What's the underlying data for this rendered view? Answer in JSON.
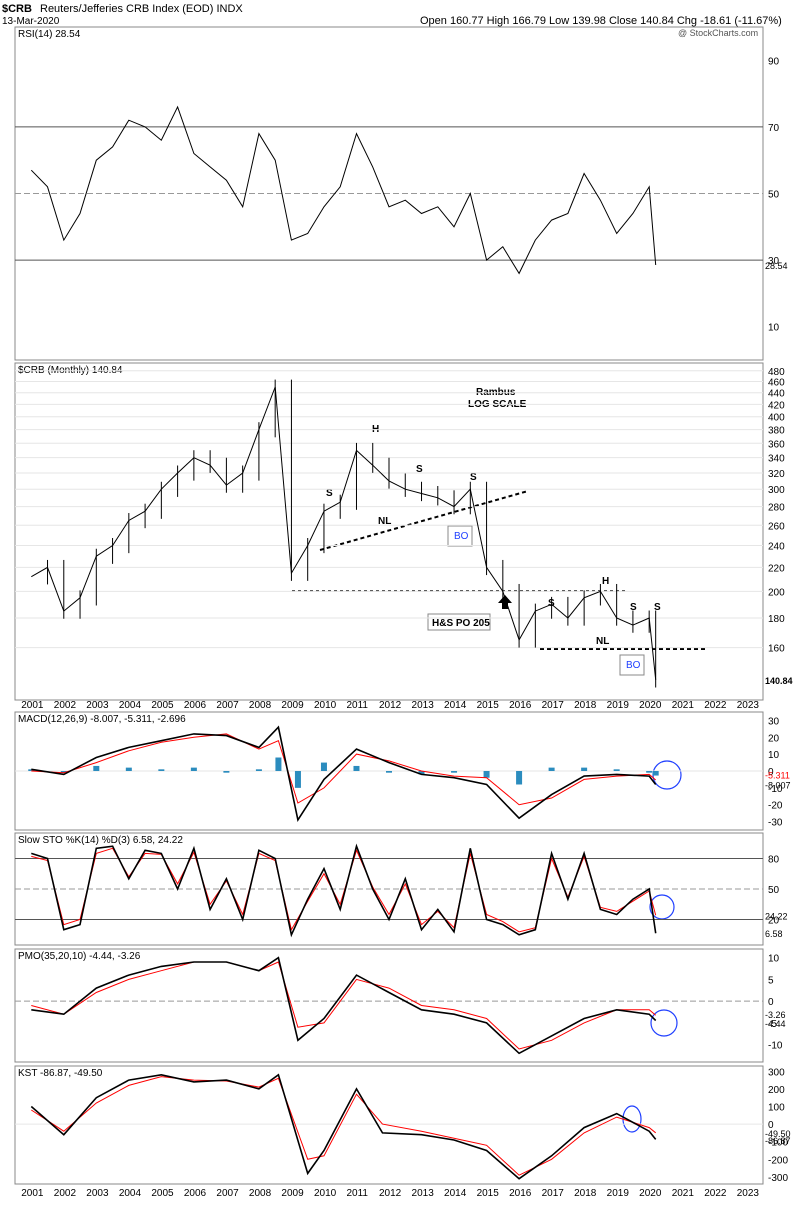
{
  "header": {
    "symbol": "$CRB",
    "name": "Reuters/Jefferies CRB Index (EOD) INDX",
    "date": "13-Mar-2020",
    "watermark": "@ StockCharts.com",
    "ohlc": "Open 160.77  High 166.79  Low 139.98  Close 140.84  Chg -18.61 (-11.67%)"
  },
  "colors": {
    "price": "#000000",
    "macd_signal": "#ff0000",
    "histogram": "#2b8cbe",
    "circle": "#1f3fff",
    "rsi_high_fill": "#4a7a4a",
    "rsi_low_fill": "#8b5a5a"
  },
  "chart_data": [
    {
      "type": "line",
      "panel": "RSI",
      "label": "RSI(14) 28.54",
      "last_value_tag": "28.54",
      "yticks": [
        "90",
        "70",
        "50",
        "30",
        "10"
      ],
      "ylim": [
        0,
        100
      ],
      "reference_lines": [
        70,
        50,
        30
      ],
      "x": [
        2001.0,
        2001.5,
        2002.0,
        2002.5,
        2003.0,
        2003.5,
        2004.0,
        2004.5,
        2005.0,
        2005.5,
        2006.0,
        2006.5,
        2007.0,
        2007.5,
        2008.0,
        2008.5,
        2009.0,
        2009.5,
        2010.0,
        2010.5,
        2011.0,
        2011.5,
        2012.0,
        2012.5,
        2013.0,
        2013.5,
        2014.0,
        2014.5,
        2015.0,
        2015.5,
        2016.0,
        2016.5,
        2017.0,
        2017.5,
        2018.0,
        2018.5,
        2019.0,
        2019.5,
        2020.0,
        2020.2
      ],
      "values": [
        57,
        52,
        36,
        44,
        60,
        64,
        72,
        70,
        66,
        76,
        62,
        58,
        54,
        46,
        68,
        60,
        36,
        38,
        46,
        52,
        68,
        58,
        46,
        48,
        44,
        46,
        40,
        50,
        30,
        34,
        26,
        36,
        42,
        44,
        56,
        48,
        38,
        44,
        52,
        28.54
      ]
    },
    {
      "type": "line",
      "panel": "Price",
      "label": "$CRB (Monthly) 140.84",
      "last_value_tag": "140.84",
      "scale": "log",
      "yticks": [
        "480",
        "460",
        "440",
        "420",
        "400",
        "380",
        "360",
        "340",
        "320",
        "300",
        "280",
        "260",
        "240",
        "220",
        "200",
        "180",
        "160"
      ],
      "annotations": [
        "Rambus",
        "LOG SCALE",
        "H",
        "S",
        "S",
        "S",
        "NL",
        "BO",
        "H&S PO 205",
        "H",
        "S",
        "S",
        "S",
        "NL",
        "BO"
      ],
      "xticks": [
        "2001",
        "2002",
        "2003",
        "2004",
        "2005",
        "2006",
        "2007",
        "2008",
        "2009",
        "2010",
        "2011",
        "2012",
        "2013",
        "2014",
        "2015",
        "2016",
        "2017",
        "2018",
        "2019",
        "2020",
        "2021",
        "2022",
        "2023"
      ],
      "x": [
        2001.0,
        2001.5,
        2002.0,
        2002.5,
        2003.0,
        2003.5,
        2004.0,
        2004.5,
        2005.0,
        2005.5,
        2006.0,
        2006.5,
        2007.0,
        2007.5,
        2008.0,
        2008.5,
        2009.0,
        2009.5,
        2010.0,
        2010.5,
        2011.0,
        2011.5,
        2012.0,
        2012.5,
        2013.0,
        2013.5,
        2014.0,
        2014.5,
        2015.0,
        2015.5,
        2016.0,
        2016.5,
        2017.0,
        2017.5,
        2018.0,
        2018.5,
        2019.0,
        2019.5,
        2020.0,
        2020.2
      ],
      "values": [
        212,
        220,
        185,
        195,
        230,
        240,
        265,
        275,
        300,
        320,
        340,
        330,
        305,
        320,
        380,
        450,
        215,
        240,
        275,
        285,
        350,
        330,
        310,
        300,
        295,
        290,
        280,
        300,
        220,
        200,
        165,
        185,
        190,
        180,
        195,
        200,
        180,
        175,
        180,
        140.84
      ]
    },
    {
      "type": "line",
      "panel": "MACD",
      "label": "MACD(12,26,9) -8.007, -5.311, -2.696",
      "last_value_tags": [
        "-5.311",
        "-8.007"
      ],
      "yticks": [
        "30",
        "20",
        "10",
        "0",
        "-10",
        "-20",
        "-30"
      ],
      "ylim": [
        -30,
        30
      ],
      "x": [
        2001.0,
        2002.0,
        2003.0,
        2004.0,
        2005.0,
        2006.0,
        2007.0,
        2008.0,
        2008.6,
        2009.2,
        2010.0,
        2011.0,
        2012.0,
        2013.0,
        2014.0,
        2015.0,
        2016.0,
        2017.0,
        2018.0,
        2019.0,
        2020.0,
        2020.2
      ],
      "series": [
        {
          "name": "MACD",
          "values": [
            1,
            -2,
            8,
            14,
            18,
            22,
            21,
            14,
            26,
            -29,
            -5,
            13,
            5,
            -2,
            -4,
            -8,
            -28,
            -14,
            -3,
            -2,
            -3,
            -8.007
          ]
        },
        {
          "name": "Signal",
          "values": [
            0,
            -1,
            5,
            12,
            17,
            20,
            22,
            13,
            18,
            -19,
            -10,
            10,
            6,
            0,
            -3,
            -4,
            -20,
            -16,
            -5,
            -3,
            -2,
            -5.311
          ]
        },
        {
          "name": "Histogram",
          "values": [
            1,
            -1,
            3,
            2,
            1,
            2,
            -1,
            1,
            8,
            -10,
            5,
            3,
            -1,
            -2,
            -1,
            -4,
            -8,
            2,
            2,
            1,
            -1,
            -2.696
          ]
        }
      ]
    },
    {
      "type": "line",
      "panel": "SlowSTO",
      "label": "Slow STO %K(14) %D(3) 6.58, 24.22",
      "last_value_tags": [
        "24.22",
        "6.58"
      ],
      "yticks": [
        "80",
        "50",
        "20"
      ],
      "ylim": [
        0,
        100
      ],
      "reference_lines": [
        80,
        50,
        20
      ],
      "x": [
        2001.0,
        2001.5,
        2002.0,
        2002.5,
        2003.0,
        2003.5,
        2004.0,
        2004.5,
        2005.0,
        2005.5,
        2006.0,
        2006.5,
        2007.0,
        2007.5,
        2008.0,
        2008.5,
        2009.0,
        2009.5,
        2010.0,
        2010.5,
        2011.0,
        2011.5,
        2012.0,
        2012.5,
        2013.0,
        2013.5,
        2014.0,
        2014.5,
        2015.0,
        2015.5,
        2016.0,
        2016.5,
        2017.0,
        2017.5,
        2018.0,
        2018.5,
        2019.0,
        2019.5,
        2020.0,
        2020.2
      ],
      "series": [
        {
          "name": "%K",
          "values": [
            85,
            80,
            10,
            15,
            90,
            92,
            60,
            88,
            85,
            50,
            90,
            30,
            60,
            20,
            88,
            80,
            5,
            40,
            70,
            30,
            92,
            50,
            20,
            60,
            10,
            30,
            8,
            90,
            20,
            15,
            5,
            10,
            85,
            40,
            85,
            30,
            25,
            40,
            50,
            6.58
          ]
        },
        {
          "name": "%D",
          "values": [
            82,
            78,
            15,
            20,
            85,
            90,
            62,
            85,
            84,
            55,
            86,
            35,
            58,
            25,
            85,
            78,
            10,
            38,
            65,
            35,
            88,
            52,
            25,
            55,
            15,
            28,
            12,
            85,
            25,
            18,
            8,
            12,
            80,
            42,
            82,
            32,
            28,
            38,
            48,
            24.22
          ]
        }
      ]
    },
    {
      "type": "line",
      "panel": "PMO",
      "label": "PMO(35,20,10) -4.44, -3.26",
      "last_value_tags": [
        "-3.26",
        "-4.44"
      ],
      "yticks": [
        "10",
        "5",
        "0",
        "-5",
        "-10"
      ],
      "ylim": [
        -12,
        11
      ],
      "x": [
        2001.0,
        2002.0,
        2003.0,
        2004.0,
        2005.0,
        2006.0,
        2007.0,
        2008.0,
        2008.6,
        2009.2,
        2010.0,
        2011.0,
        2012.0,
        2013.0,
        2014.0,
        2015.0,
        2016.0,
        2017.0,
        2018.0,
        2019.0,
        2020.0,
        2020.2
      ],
      "series": [
        {
          "name": "PMO",
          "values": [
            -2,
            -3,
            3,
            6,
            8,
            9,
            9,
            7,
            10,
            -9,
            -4,
            6,
            2,
            -2,
            -3,
            -5,
            -12,
            -8,
            -4,
            -2,
            -3,
            -4.44
          ]
        },
        {
          "name": "Signal",
          "values": [
            -1,
            -3,
            2,
            5,
            7,
            9,
            9,
            7,
            9,
            -6,
            -5,
            5,
            3,
            -1,
            -2,
            -4,
            -11,
            -9,
            -5,
            -2,
            -2,
            -3.26
          ]
        }
      ]
    },
    {
      "type": "line",
      "panel": "KST",
      "label": "KST -86.87, -49.50",
      "last_value_tags": [
        "-49.50",
        "-86.87"
      ],
      "yticks": [
        "300",
        "200",
        "100",
        "0",
        "-100",
        "-200",
        "-300"
      ],
      "ylim": [
        -320,
        300
      ],
      "xticks": [
        "2001",
        "2002",
        "2003",
        "2004",
        "2005",
        "2006",
        "2007",
        "2008",
        "2009",
        "2010",
        "2011",
        "2012",
        "2013",
        "2014",
        "2015",
        "2016",
        "2017",
        "2018",
        "2019",
        "2020",
        "2021",
        "2022",
        "2023"
      ],
      "x": [
        2001.0,
        2002.0,
        2003.0,
        2004.0,
        2005.0,
        2006.0,
        2007.0,
        2008.0,
        2008.6,
        2009.5,
        2010.0,
        2011.0,
        2011.8,
        2013.0,
        2014.0,
        2015.0,
        2016.0,
        2017.0,
        2018.0,
        2019.0,
        2020.0,
        2020.2
      ],
      "series": [
        {
          "name": "KST",
          "values": [
            100,
            -60,
            150,
            250,
            280,
            240,
            250,
            200,
            280,
            -280,
            -150,
            200,
            -50,
            -60,
            -90,
            -150,
            -310,
            -180,
            -20,
            60,
            -40,
            -86.87
          ]
        },
        {
          "name": "Signal",
          "values": [
            80,
            -40,
            120,
            220,
            270,
            250,
            245,
            210,
            260,
            -200,
            -180,
            170,
            0,
            -40,
            -80,
            -120,
            -290,
            -200,
            -50,
            40,
            -20,
            -49.5
          ]
        }
      ]
    }
  ]
}
